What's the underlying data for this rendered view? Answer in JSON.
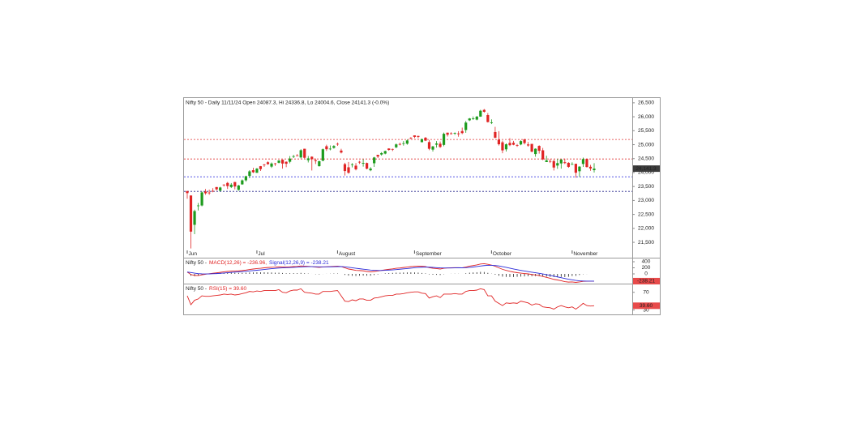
{
  "chart_data": [
    {
      "type": "candlestick",
      "title": "Nifty 50 - Daily 11/11/24 Open 24087.3, Hi 24336.8, Lo 24004.6, Close 24141.3 (-0.0%)",
      "categories": [
        "Jun",
        null,
        null,
        null,
        null,
        null,
        null,
        null,
        null,
        null,
        null,
        null,
        null,
        null,
        null,
        null,
        null,
        null,
        null,
        "Jul",
        null,
        null,
        null,
        null,
        null,
        null,
        null,
        null,
        null,
        null,
        null,
        null,
        null,
        null,
        null,
        null,
        null,
        null,
        null,
        null,
        null,
        "August",
        null,
        null,
        null,
        null,
        null,
        null,
        null,
        null,
        null,
        null,
        null,
        null,
        null,
        null,
        null,
        null,
        null,
        null,
        null,
        null,
        "September",
        null,
        null,
        null,
        null,
        null,
        null,
        null,
        null,
        null,
        null,
        null,
        null,
        null,
        null,
        null,
        null,
        null,
        null,
        null,
        null,
        "October",
        null,
        null,
        null,
        null,
        null,
        null,
        null,
        null,
        null,
        null,
        null,
        null,
        null,
        null,
        null,
        null,
        null,
        null,
        null,
        null,
        null,
        "November",
        null,
        null,
        null,
        null,
        null,
        null
      ],
      "open": [
        23338,
        23179,
        22128,
        22798,
        22821,
        23319,
        23283,
        23345,
        23481,
        23350,
        23570,
        23629,
        23481,
        23661,
        23382,
        23577,
        23723,
        23881,
        24085,
        23992,
        24228,
        24291,
        24369,
        24213,
        24329,
        24351,
        24459,
        24387,
        24388,
        24572,
        24615,
        24543,
        24853,
        24445,
        24568,
        24445,
        24231,
        24424,
        24943,
        24839,
        24886,
        25030,
        24789,
        24302,
        24189,
        24289,
        24247,
        24386,
        24321,
        24342,
        24082,
        24334,
        24636,
        24648,
        24680,
        24863,
        24845,
        24906,
        25024,
        25030,
        25035,
        25249,
        25333,
        25313,
        25089,
        25250,
        25093,
        24823,
        24999,
        25035,
        24991,
        25430,
        25406,
        25416,
        25402,
        25487,
        25525,
        25873,
        25921,
        25899,
        26005,
        26248,
        26061,
        25788,
        25453,
        25181,
        25085,
        24832,
        25065,
        25067,
        24986,
        25008,
        25186,
        25008,
        25028,
        24664,
        24956,
        24798,
        24378,
        24413,
        24413,
        24252,
        24328,
        24371,
        24349,
        24302,
        24315,
        24048,
        24308,
        24490,
        24207,
        24087.3
      ],
      "high": [
        23338,
        23179,
        22670,
        22910,
        23320,
        23411,
        23389,
        23441,
        23481,
        23490,
        23579,
        23664,
        23624,
        23667,
        23558,
        23754,
        23889,
        24087,
        24174,
        24164,
        24236,
        24309,
        24401,
        24363,
        24345,
        24443,
        24461,
        24402,
        24592,
        24635,
        24662,
        24837,
        24855,
        24595,
        24582,
        24504,
        24426,
        24861,
        24999,
        24971,
        24984,
        25078,
        24851,
        24350,
        24382,
        24337,
        24340,
        24420,
        24473,
        24359,
        24196,
        24563,
        24638,
        24734,
        24787,
        24868,
        24858,
        25043,
        25073,
        25130,
        25193,
        25268,
        25333,
        25321,
        25216,
        25275,
        25168,
        24957,
        25130,
        25114,
        25433,
        25430,
        25445,
        25441,
        25482,
        25611,
        25849,
        25956,
        26011,
        26032,
        26250,
        26277,
        26134,
        25907,
        25639,
        25485,
        25143,
        25044,
        25234,
        25134,
        25028,
        25159,
        25212,
        25094,
        25029,
        24869,
        24978,
        24882,
        24604,
        24481,
        24466,
        24492,
        24484,
        24499,
        24372,
        24368,
        24316,
        24229,
        24537,
        24503,
        24276,
        24336.8
      ],
      "low": [
        23062,
        21281,
        21791,
        22642,
        22789,
        23206,
        23206,
        23295,
        23354,
        23334,
        23500,
        23412,
        23446,
        23398,
        23351,
        23562,
        23674,
        23805,
        23985,
        23992,
        24056,
        24207,
        24281,
        24168,
        24240,
        24331,
        24141,
        24193,
        24332,
        24522,
        24587,
        24505,
        24504,
        24362,
        24074,
        24307,
        24211,
        24410,
        24774,
        24798,
        24856,
        24956,
        24686,
        23893,
        23960,
        24185,
        24079,
        24311,
        24212,
        24116,
        24049,
        24204,
        24522,
        24607,
        24654,
        24784,
        24771,
        24874,
        24973,
        24965,
        24999,
        25199,
        25235,
        25235,
        25084,
        25127,
        24801,
        24753,
        24896,
        24885,
        24942,
        25292,
        25361,
        25352,
        25285,
        25376,
        25426,
        25847,
        25887,
        25872,
        25998,
        26151,
        25794,
        25739,
        25230,
        24967,
        24694,
        24756,
        24948,
        24979,
        24920,
        24979,
        25008,
        24929,
        24728,
        24568,
        24679,
        24445,
        24378,
        24342,
        24074,
        24134,
        24141,
        24307,
        24172,
        24281,
        23817,
        23843,
        24204,
        24179,
        24066,
        24004.6
      ],
      "close": [
        23264,
        21884,
        22620,
        22821,
        23290,
        23259,
        23264,
        23323,
        23399,
        23465,
        23557,
        23516,
        23567,
        23501,
        23538,
        23721,
        23868,
        24044,
        24010,
        24141,
        24124,
        24286,
        24302,
        24324,
        24321,
        24433,
        24324,
        24316,
        24502,
        24587,
        24614,
        24800,
        24531,
        24509,
        24479,
        24413,
        24406,
        24835,
        24836,
        24857,
        24951,
        25011,
        24718,
        24055,
        23992,
        24297,
        24117,
        24368,
        24347,
        24139,
        24144,
        24541,
        24573,
        24698,
        24770,
        24812,
        24823,
        25010,
        25017,
        25052,
        25152,
        25236,
        25279,
        25280,
        25199,
        25145,
        24852,
        24936,
        25041,
        24918,
        25389,
        25357,
        25383,
        25418,
        25377,
        25415,
        25791,
        25939,
        25940,
        26004,
        26216,
        26179,
        25811,
        25796,
        25250,
        25015,
        24796,
        25013,
        24982,
        24998,
        24964,
        25128,
        25057,
        24971,
        24750,
        24854,
        24781,
        24472,
        24436,
        24399,
        24181,
        24339,
        24466,
        24341,
        24205,
        24305,
        23995,
        24213,
        24484,
        24199,
        24148,
        24141.3
      ],
      "up_color": "#1e9b1e",
      "down_color": "#e02424",
      "ylim": [
        20950,
        26700
      ],
      "yticks": [
        {
          "value": 21500,
          "label": "21,500"
        },
        {
          "value": 22000,
          "label": "22,000"
        },
        {
          "value": 22500,
          "label": "22,500"
        },
        {
          "value": 23000,
          "label": "23,000"
        },
        {
          "value": 23500,
          "label": "23,500"
        },
        {
          "value": 24000,
          "label": "24,000"
        },
        {
          "value": 24500,
          "label": "24,500"
        },
        {
          "value": 25000,
          "label": "25,000"
        },
        {
          "value": 25500,
          "label": "25,500"
        },
        {
          "value": 26000,
          "label": "26,000"
        },
        {
          "value": 26500,
          "label": "26,500"
        }
      ],
      "levels": [
        {
          "value": 25186,
          "color": "#e03030"
        },
        {
          "value": 24488,
          "color": "#e03030"
        },
        {
          "value": 23849,
          "color": "#3a3ae0"
        },
        {
          "value": 23326,
          "color": "#24248a"
        }
      ],
      "last_label": {
        "value": 24141.3,
        "label": "24,141.3"
      }
    },
    {
      "type": "macd",
      "title": "Nifty 50 -",
      "series": [
        {
          "name": "MACD(12,26) = -236.96,",
          "color": "#e02424",
          "values": [
            60,
            -20,
            -50,
            -55,
            -30,
            -10,
            5,
            20,
            35,
            50,
            68,
            80,
            90,
            95,
            100,
            110,
            125,
            145,
            160,
            175,
            185,
            200,
            210,
            218,
            222,
            230,
            228,
            225,
            232,
            240,
            245,
            262,
            255,
            248,
            238,
            225,
            215,
            228,
            235,
            240,
            248,
            255,
            240,
            200,
            160,
            140,
            115,
            110,
            100,
            80,
            65,
            80,
            95,
            115,
            135,
            150,
            165,
            185,
            195,
            210,
            225,
            240,
            250,
            255,
            250,
            240,
            205,
            185,
            175,
            160,
            185,
            195,
            200,
            205,
            205,
            200,
            225,
            255,
            275,
            295,
            325,
            335,
            315,
            290,
            250,
            200,
            150,
            115,
            85,
            60,
            40,
            25,
            12,
            0,
            -20,
            -35,
            -55,
            -85,
            -115,
            -145,
            -180,
            -200,
            -225,
            -255,
            -270,
            -265,
            -280,
            -265,
            -245,
            -240,
            -238,
            -236.96
          ]
        },
        {
          "name": "Signal(12,26,9) = -238.21",
          "color": "#2a2ad8",
          "last_label": "-238.21",
          "values": [
            60,
            44,
            25,
            9,
            1,
            -1,
            0,
            4,
            10,
            18,
            28,
            38,
            48,
            58,
            66,
            75,
            85,
            97,
            109,
            120,
            133,
            146,
            159,
            171,
            181,
            191,
            198,
            204,
            209,
            215,
            221,
            229,
            234,
            237,
            237,
            235,
            231,
            231,
            232,
            233,
            236,
            240,
            240,
            232,
            218,
            202,
            185,
            170,
            156,
            141,
            126,
            117,
            112,
            113,
            117,
            124,
            132,
            143,
            153,
            164,
            176,
            189,
            201,
            212,
            220,
            224,
            220,
            213,
            206,
            197,
            195,
            195,
            196,
            198,
            200,
            200,
            205,
            215,
            227,
            241,
            258,
            273,
            281,
            283,
            276,
            261,
            239,
            214,
            188,
            162,
            138,
            115,
            94,
            75,
            56,
            38,
            19,
            -2,
            -25,
            -49,
            -75,
            -100,
            -125,
            -150,
            -175,
            -195,
            -215,
            -228,
            -234,
            -237,
            -238,
            -238.21
          ]
        }
      ],
      "histogram": {
        "color": "#222222",
        "values": [
          0,
          -64,
          -75,
          -64,
          -31,
          -9,
          5,
          16,
          25,
          32,
          40,
          42,
          42,
          37,
          34,
          35,
          40,
          48,
          51,
          55,
          52,
          54,
          51,
          47,
          41,
          39,
          30,
          21,
          23,
          25,
          24,
          33,
          21,
          11,
          1,
          -10,
          -16,
          -3,
          3,
          7,
          12,
          15,
          0,
          -32,
          -58,
          -62,
          -70,
          -60,
          -56,
          -61,
          -61,
          -37,
          -17,
          2,
          18,
          26,
          33,
          42,
          42,
          46,
          49,
          51,
          49,
          43,
          30,
          16,
          -15,
          -28,
          -31,
          -37,
          -10,
          0,
          4,
          7,
          5,
          0,
          20,
          40,
          48,
          54,
          67,
          62,
          34,
          7,
          -26,
          -61,
          -89,
          -99,
          -103,
          -102,
          -98,
          -90,
          -82,
          -75,
          -76,
          -73,
          -74,
          -83,
          -90,
          -96,
          -105,
          -100,
          -100,
          -105,
          -95,
          -70,
          -65,
          -37,
          -11,
          -3,
          0,
          1.25
        ]
      },
      "ylim": [
        -320,
        480
      ],
      "yticks": [
        400,
        200,
        0
      ]
    },
    {
      "type": "line",
      "title": "Nifty 50 -",
      "series": [
        {
          "name": "RSI(15) = 39.60",
          "color": "#e02424",
          "last_label": "39.60",
          "values": [
            62,
            42,
            52,
            55,
            62,
            61,
            61,
            62,
            63,
            64,
            66,
            65,
            66,
            64,
            65,
            67,
            69,
            72,
            71,
            73,
            72,
            74,
            74,
            74,
            74,
            76,
            70,
            69,
            73,
            75,
            75,
            78,
            70,
            69,
            68,
            66,
            66,
            72,
            72,
            72,
            73,
            74,
            62,
            50,
            49,
            53,
            51,
            55,
            55,
            52,
            52,
            57,
            58,
            60,
            62,
            63,
            63,
            66,
            66,
            67,
            69,
            70,
            71,
            71,
            68,
            67,
            57,
            60,
            62,
            58,
            66,
            66,
            66,
            67,
            66,
            66,
            72,
            74,
            74,
            75,
            78,
            76,
            62,
            62,
            50,
            45,
            40,
            46,
            45,
            46,
            45,
            50,
            48,
            46,
            41,
            44,
            43,
            37,
            36,
            35,
            32,
            37,
            40,
            37,
            35,
            37,
            32,
            38,
            45,
            40,
            39,
            39.6
          ]
        }
      ],
      "ylim": [
        20,
        86
      ],
      "yticks": [
        70,
        30
      ]
    }
  ]
}
